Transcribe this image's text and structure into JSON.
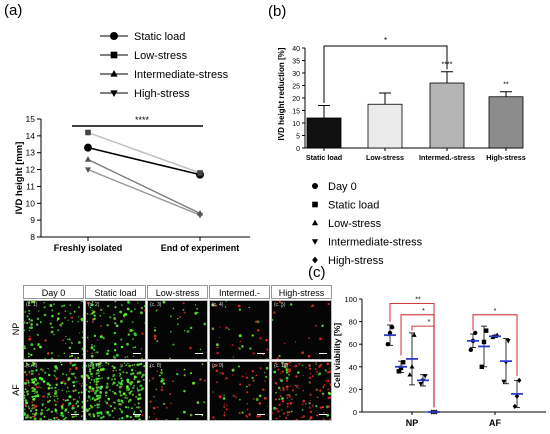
{
  "panels": {
    "a": "(a)",
    "b": "(b)",
    "c": "(c)"
  },
  "chart_data": [
    {
      "type": "line",
      "panel": "(a)",
      "categories": [
        "Freshly isolated",
        "End of experiment"
      ],
      "ylabel": "IVD height [mm]",
      "ylim": [
        8,
        15
      ],
      "yticks": [
        8,
        9,
        10,
        11,
        12,
        13,
        14,
        15
      ],
      "series": [
        {
          "name": "Static load",
          "marker": "circle",
          "color": "#000000",
          "values": [
            13.3,
            11.7
          ]
        },
        {
          "name": "Low-stress",
          "marker": "square",
          "color": "#bdbdbd",
          "values": [
            14.2,
            11.8
          ]
        },
        {
          "name": "Intermediate-stress",
          "marker": "triangle-up",
          "color": "#7a7a7a",
          "values": [
            12.6,
            9.4
          ]
        },
        {
          "name": "High-stress",
          "marker": "triangle-down",
          "color": "#9a9a9a",
          "values": [
            12.0,
            9.3
          ]
        }
      ],
      "annotations": [
        {
          "text": "****"
        }
      ]
    },
    {
      "type": "bar",
      "panel": "(b)",
      "categories": [
        "Static load",
        "Low-stress",
        "Intermed.-stress",
        "High-stress"
      ],
      "values": [
        12,
        17.5,
        26,
        20.5
      ],
      "errors": [
        5,
        4.5,
        4.5,
        2
      ],
      "colors": [
        "#111111",
        "#ebebeb",
        "#b4b4b4",
        "#8c8c8c"
      ],
      "ylabel": "IVD height reduction [%]",
      "ylim": [
        0,
        40
      ],
      "yticks": [
        0,
        5,
        10,
        15,
        20,
        25,
        30,
        35,
        40
      ],
      "annotations": [
        {
          "text": "*",
          "type": "bracket",
          "from": "Static load",
          "to": "Intermed.-stress"
        },
        {
          "text": "****",
          "target": "Intermed.-stress"
        },
        {
          "text": "**",
          "target": "High-stress"
        }
      ]
    },
    {
      "type": "scatter",
      "panel": "(c)",
      "categories": [
        "NP",
        "AF"
      ],
      "ylabel": "Cell viability [%]",
      "ylim": [
        0,
        100
      ],
      "yticks": [
        0,
        20,
        40,
        60,
        80,
        100
      ],
      "series": [
        {
          "name": "Day 0",
          "marker": "circle",
          "values": [
            {
              "mean": 68,
              "sd": 9,
              "points": [
                60,
                70,
                75
              ]
            },
            {
              "mean": 63,
              "sd": 6,
              "points": [
                55,
                63,
                70
              ]
            }
          ]
        },
        {
          "name": "Static load",
          "marker": "square",
          "values": [
            {
              "mean": 40,
              "sd": 5,
              "points": [
                36,
                39,
                44
              ]
            },
            {
              "mean": 58,
              "sd": 18,
              "points": [
                40,
                62,
                72
              ]
            }
          ]
        },
        {
          "name": "Low-stress",
          "marker": "triangle-up",
          "values": [
            {
              "mean": 47,
              "sd": 23,
              "points": [
                33,
                40,
                68
              ]
            },
            {
              "mean": 67,
              "sd": 1,
              "points": [
                66,
                67,
                68
              ]
            }
          ]
        },
        {
          "name": "Intermediate-stress",
          "marker": "triangle-down",
          "values": [
            {
              "mean": 28,
              "sd": 5,
              "points": [
                25,
                28,
                32
              ]
            },
            {
              "mean": 45,
              "sd": 20,
              "points": [
                27,
                44,
                63
              ]
            }
          ]
        },
        {
          "name": "High-stress",
          "marker": "diamond",
          "values": [
            {
              "mean": 0,
              "sd": 0,
              "points": [
                0,
                0,
                0
              ]
            },
            {
              "mean": 16,
              "sd": 12,
              "points": [
                5,
                14,
                28
              ]
            }
          ]
        }
      ],
      "annotations": [
        {
          "text": "**",
          "type": "bracket",
          "from": "Day 0",
          "to": "High-stress",
          "group": "NP"
        },
        {
          "text": "*",
          "type": "bracket",
          "from": "Static load",
          "to": "High-stress",
          "group": "NP"
        },
        {
          "text": "*",
          "type": "bracket",
          "from": "Low-stress",
          "to": "High-stress",
          "group": "NP"
        },
        {
          "text": "*",
          "type": "bracket",
          "from": "Day 0",
          "to": "High-stress",
          "group": "AF"
        }
      ]
    }
  ],
  "micrographs": {
    "columns": [
      "Day 0",
      "Static load",
      "Low-stress",
      "Intermed.-stress",
      "High-stress"
    ],
    "rows": [
      {
        "label": "NP",
        "tiles": [
          {
            "id": "(c. 1)",
            "green": 0.35,
            "red": 0.05
          },
          {
            "id": "(c. 2)",
            "green": 0.3,
            "red": 0.08
          },
          {
            "id": "(c. 3)",
            "green": 0.1,
            "red": 0.05
          },
          {
            "id": "(c. 4)",
            "green": 0.06,
            "red": 0.12
          },
          {
            "id": "(c. 5)",
            "green": 0.02,
            "red": 0.08
          }
        ]
      },
      {
        "label": "AF",
        "tiles": [
          {
            "id": "(c. 6)",
            "green": 0.8,
            "red": 0.25
          },
          {
            "id": "(c. 7)",
            "green": 1.0,
            "red": 0.05
          },
          {
            "id": "(c. 8)",
            "green": 0.12,
            "red": 0.1
          },
          {
            "id": "(c. 9)",
            "green": 0.06,
            "red": 0.3
          },
          {
            "id": "(c. 10)",
            "green": 0.15,
            "red": 0.7
          }
        ]
      }
    ]
  }
}
